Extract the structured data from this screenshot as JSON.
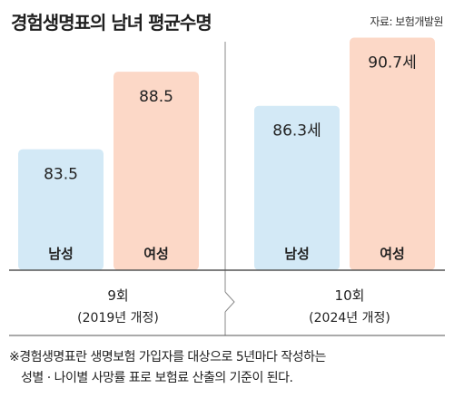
{
  "title": "경험생명표의 남녀 평균수명",
  "source": "자료: 보험개발원",
  "colors": {
    "male": "#d3e9f6",
    "female": "#fcd8c7",
    "axis": "#555555",
    "divider": "#888888"
  },
  "chart_data": {
    "type": "bar",
    "groups": [
      {
        "revision": "9회",
        "year": "(2019년 개정)",
        "bars": [
          {
            "series": "남성",
            "value": 83.5,
            "label": "83.5"
          },
          {
            "series": "여성",
            "value": 88.5,
            "label": "88.5"
          }
        ]
      },
      {
        "revision": "10회",
        "year": "(2024년 개정)",
        "bars": [
          {
            "series": "남성",
            "value": 86.3,
            "label": "86.3세"
          },
          {
            "series": "여성",
            "value": 90.7,
            "label": "90.7세"
          }
        ]
      }
    ],
    "title": "경험생명표의 남녀 평균수명",
    "ylabel": "",
    "grid": false
  },
  "footnote": {
    "line1": "※경험생명표란 생명보험 가입자를 대상으로 5년마다 작성하는",
    "line2": "성별 · 나이별 사망률 표로 보험료 산출의 기준이 된다."
  }
}
